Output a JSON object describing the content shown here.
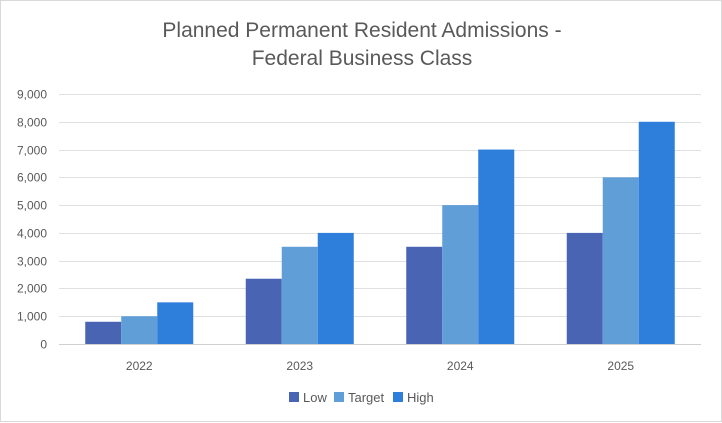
{
  "chart_data": {
    "type": "bar",
    "title": "Planned Permanent Resident Admissions -",
    "subtitle": "Federal Business Class",
    "xlabel": "",
    "ylabel": "",
    "categories": [
      "2022",
      "2023",
      "2024",
      "2025"
    ],
    "series": [
      {
        "name": "Low",
        "values": [
          800,
          2350,
          3500,
          4000
        ],
        "color": "#4a64b4"
      },
      {
        "name": "Target",
        "values": [
          1000,
          3500,
          5000,
          6000
        ],
        "color": "#5f9ed6"
      },
      {
        "name": "High",
        "values": [
          1500,
          4000,
          7000,
          8000
        ],
        "color": "#2e7fdb"
      }
    ],
    "ylim": [
      0,
      9000
    ],
    "yticks": [
      0,
      1000,
      2000,
      3000,
      4000,
      5000,
      6000,
      7000,
      8000,
      9000
    ],
    "ytick_labels": [
      "0",
      "1,000",
      "2,000",
      "3,000",
      "4,000",
      "5,000",
      "6,000",
      "7,000",
      "8,000",
      "9,000"
    ],
    "grid": true,
    "legend_position": "bottom"
  }
}
